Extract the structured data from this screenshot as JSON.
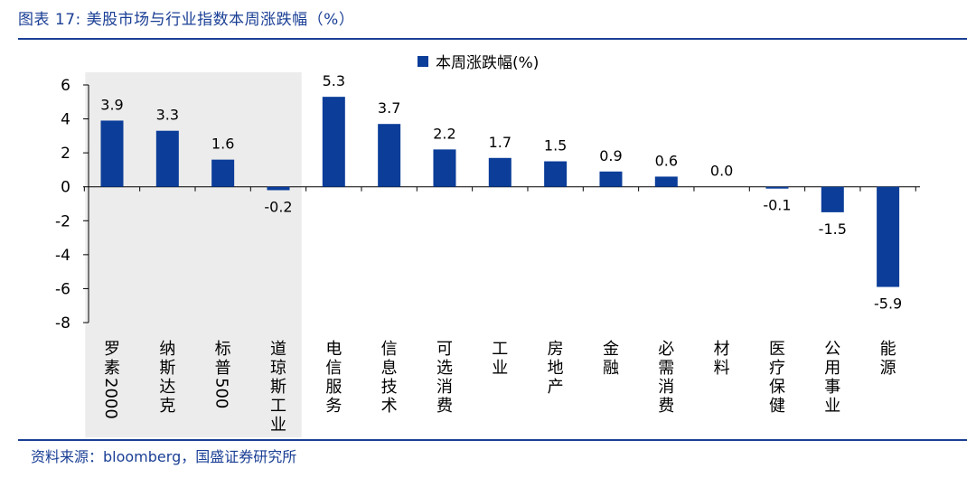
{
  "figure": {
    "title": "图表 17:  美股市场与行业指数本周涨跌幅（%）",
    "source": "资料来源：bloomberg，国盛证券研究所"
  },
  "chart_data": {
    "type": "bar",
    "categories": [
      "罗素2000",
      "纳斯达克",
      "标普500",
      "道琼斯工业",
      "电信服务",
      "信息技术",
      "可选消费",
      "工业",
      "房地产",
      "金融",
      "必需消费",
      "材料",
      "医疗保健",
      "公用事业",
      "能源"
    ],
    "series": [
      {
        "name": "本周涨跌幅(%)",
        "values": [
          3.9,
          3.3,
          1.6,
          -0.2,
          5.3,
          3.7,
          2.2,
          1.7,
          1.5,
          0.9,
          0.6,
          0.0,
          -0.1,
          -1.5,
          -5.9
        ]
      }
    ],
    "data_labels": [
      "3.9",
      "3.3",
      "1.6",
      "-0.2",
      "5.3",
      "3.7",
      "2.2",
      "1.7",
      "1.5",
      "0.9",
      "0.6",
      "0.0",
      "-0.1",
      "-1.5",
      "-5.9"
    ],
    "ylim": [
      -8,
      6
    ],
    "yticks": [
      6,
      4,
      2,
      0,
      -2,
      -4,
      -6,
      -8
    ],
    "highlighted_categories": [
      "罗素2000",
      "纳斯达克",
      "标普500",
      "道琼斯工业"
    ],
    "legend_position": "top-center",
    "grid": false,
    "xlabel": "",
    "ylabel": "",
    "colors": {
      "bar": "#0b3d99",
      "highlight_band": "#ececec",
      "text": "#1a3f95"
    }
  }
}
